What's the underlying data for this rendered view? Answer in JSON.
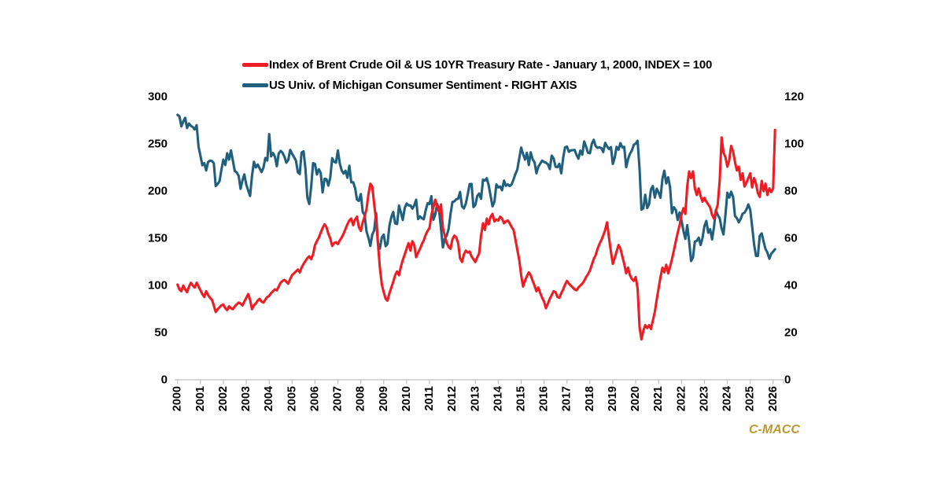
{
  "legend": [
    {
      "label": "Index of Brent Crude Oil & US 10YR Treasury Rate - January 1, 2000, INDEX = 100",
      "color": "#EE1C23"
    },
    {
      "label": "US Univ. of Michigan Consumer Sentiment - RIGHT AXIS",
      "color": "#20607E"
    }
  ],
  "watermark": "C-MACC",
  "colors": {
    "series_red": "#EE1C23",
    "series_blue": "#20607E",
    "axis_line": "#BFBFBF",
    "label_text": "#000000",
    "watermark": "#BE9730",
    "background": "#FFFFFF"
  },
  "chart_data": {
    "type": "line",
    "title": "",
    "xlabel": "",
    "ylabel_left": "",
    "ylabel_right": "",
    "grid": false,
    "legend_position": "top",
    "x_start": "2000-01",
    "x_interval": "monthly",
    "x_tick_labels": [
      "2000",
      "2001",
      "2002",
      "2003",
      "2004",
      "2005",
      "2006",
      "2007",
      "2008",
      "2009",
      "2010",
      "2011",
      "2012",
      "2013",
      "2014",
      "2015",
      "2016",
      "2017",
      "2018",
      "2019",
      "2020",
      "2021",
      "2022",
      "2023",
      "2024",
      "2025",
      "2026"
    ],
    "left_axis": {
      "min": 0,
      "max": 300,
      "step": 50,
      "ticks": [
        0,
        50,
        100,
        150,
        200,
        250,
        300
      ]
    },
    "right_axis": {
      "min": 0,
      "max": 120,
      "step": 20,
      "ticks": [
        0,
        20,
        40,
        60,
        80,
        100,
        120
      ]
    },
    "series": [
      {
        "name": "Index of Brent Crude Oil & US 10YR Treasury Rate - January 1, 2000, INDEX = 100",
        "axis": "left",
        "color": "#EE1C23",
        "z": 1,
        "values": [
          100,
          95,
          93,
          99,
          95,
          92,
          98,
          102,
          99,
          97,
          102,
          98,
          94,
          90,
          87,
          93,
          89,
          86,
          84,
          78,
          71,
          74,
          76,
          78,
          79,
          75,
          73,
          77,
          75,
          74,
          77,
          79,
          81,
          80,
          78,
          82,
          86,
          90,
          84,
          74,
          78,
          80,
          83,
          85,
          82,
          81,
          84,
          87,
          88,
          91,
          93,
          95,
          94,
          98,
          102,
          104,
          105,
          103,
          101,
          106,
          110,
          112,
          114,
          116,
          113,
          118,
          122,
          125,
          128,
          130,
          127,
          132,
          142,
          146,
          150,
          155,
          160,
          164,
          161,
          154,
          149,
          141,
          144,
          145,
          143,
          147,
          150,
          154,
          159,
          164,
          168,
          170,
          163,
          169,
          172,
          161,
          157,
          166,
          172,
          180,
          196,
          207,
          204,
          186,
          168,
          143,
          118,
          100,
          92,
          85,
          83,
          91,
          97,
          103,
          110,
          114,
          110,
          119,
          126,
          132,
          138,
          144,
          136,
          146,
          142,
          129,
          134,
          138,
          143,
          147,
          153,
          157,
          160,
          174,
          182,
          190,
          183,
          177,
          185,
          160,
          152,
          144,
          140,
          138,
          148,
          152,
          150,
          144,
          128,
          124,
          132,
          136,
          134,
          135,
          130,
          127,
          124,
          129,
          133,
          152,
          165,
          158,
          170,
          164,
          172,
          175,
          167,
          169,
          168,
          172,
          170,
          165,
          167,
          168,
          165,
          161,
          158,
          148,
          137,
          126,
          110,
          98,
          104,
          109,
          113,
          110,
          104,
          99,
          93,
          97,
          91,
          86,
          82,
          75,
          80,
          85,
          89,
          93,
          92,
          87,
          86,
          91,
          95,
          100,
          104,
          101,
          99,
          97,
          95,
          94,
          97,
          99,
          101,
          104,
          108,
          111,
          115,
          121,
          127,
          131,
          138,
          143,
          147,
          152,
          158,
          166,
          150,
          135,
          122,
          128,
          135,
          142,
          138,
          130,
          122,
          112,
          118,
          110,
          106,
          104,
          108,
          96,
          55,
          42,
          51,
          57,
          54,
          57,
          53,
          62,
          71,
          84,
          96,
          108,
          118,
          113,
          121,
          112,
          119,
          127,
          136,
          146,
          155,
          163,
          174,
          181,
          175,
          204,
          220,
          213,
          220,
          202,
          195,
          202,
          194,
          188,
          192,
          188,
          185,
          182,
          174,
          170,
          178,
          185,
          211,
          256,
          240,
          235,
          225,
          232,
          247,
          241,
          230,
          221,
          225,
          211,
          218,
          204,
          208,
          213,
          218,
          203,
          213,
          207,
          197,
          193,
          210,
          199,
          207,
          195,
          202,
          198,
          202,
          264
        ]
      },
      {
        "name": "US Univ. of Michigan Consumer Sentiment - RIGHT AXIS",
        "axis": "right",
        "color": "#20607E",
        "z": 0,
        "values": [
          112,
          111.3,
          107.1,
          109.2,
          110.7,
          106.4,
          108.3,
          107.3,
          106.8,
          105.8,
          107.6,
          98.4,
          94.7,
          90.6,
          91.5,
          88.4,
          92,
          92.6,
          92.4,
          91.5,
          81.8,
          82.7,
          83.9,
          88.8,
          93,
          90.7,
          95.7,
          93,
          96.9,
          92.4,
          88.1,
          87.6,
          86.1,
          80.6,
          84.2,
          86.7,
          82.4,
          79.9,
          77.6,
          86,
          92.1,
          89.7,
          90.9,
          89.3,
          87.7,
          89.6,
          93.7,
          92.6,
          103.8,
          94.4,
          95.8,
          94.2,
          90.2,
          95.6,
          96.7,
          95.9,
          94.2,
          91.7,
          92.8,
          97.1,
          95.5,
          94.1,
          92.6,
          87.7,
          86.9,
          96,
          96.5,
          89.1,
          76.9,
          74.2,
          81.6,
          91.5,
          91.2,
          86.7,
          88.9,
          87.4,
          79.1,
          84.9,
          84.7,
          82,
          85.4,
          93.6,
          92.1,
          91.7,
          96.9,
          91.3,
          88.4,
          87.1,
          88.3,
          85.3,
          90.4,
          83.4,
          83.4,
          80.9,
          76.1,
          75.5,
          78.4,
          70.8,
          69.5,
          62.6,
          59.8,
          56.4,
          61.2,
          63,
          70.3,
          57.6,
          55.3,
          60.1,
          61.2,
          56.3,
          57.3,
          65.1,
          68.7,
          70.8,
          66,
          65.7,
          73.5,
          70.6,
          67.4,
          72.5,
          74.4,
          73.6,
          73.6,
          72.2,
          73.6,
          76,
          67.8,
          68.9,
          68.2,
          67.7,
          71.6,
          74.5,
          74.2,
          77.5,
          67.5,
          69.8,
          74.3,
          71.5,
          63.7,
          55.8,
          59.5,
          60.8,
          63.7,
          69.9,
          75,
          75.3,
          76.2,
          76.4,
          79.3,
          73.2,
          72.3,
          74.3,
          78.3,
          82.6,
          82.7,
          72.9,
          73.8,
          77.6,
          78.6,
          76.4,
          84.5,
          84.1,
          85.1,
          82.1,
          77.5,
          73.2,
          75.1,
          82.5,
          81.2,
          81.6,
          80,
          84.1,
          81.9,
          82.5,
          81.8,
          82.5,
          84.6,
          86.9,
          88.8,
          93.6,
          98.1,
          95.4,
          93,
          95.9,
          90.7,
          96.1,
          93.1,
          91.9,
          87.2,
          90,
          91.3,
          92.6,
          92,
          91.7,
          91,
          89,
          94.7,
          93.5,
          90,
          89.8,
          91.2,
          87.2,
          93.8,
          98.2,
          98.5,
          96.3,
          96.9,
          97,
          97.1,
          95,
          93.4,
          96.8,
          95.1,
          100.7,
          98.5,
          95.9,
          95.7,
          99.7,
          101.4,
          98.8,
          98,
          98.2,
          97.9,
          96.2,
          100.1,
          98.6,
          97.5,
          98.3,
          91.2,
          93.8,
          98.4,
          97.2,
          100,
          98.2,
          98.4,
          89.8,
          93.2,
          95.5,
          96.8,
          99.3,
          99.8,
          101,
          89.1,
          71.8,
          72.3,
          78.1,
          72.5,
          74.1,
          80.4,
          81.8,
          76.9,
          80.7,
          79,
          76.8,
          84.9,
          88.3,
          82.9,
          85.5,
          81.2,
          70.3,
          72.8,
          71.7,
          67.4,
          70.6,
          67.2,
          62.8,
          59.4,
          65.2,
          58.4,
          50,
          51.5,
          58.2,
          58.6,
          59.9,
          56.8,
          59.7,
          64.9,
          67,
          62,
          63.5,
          59.2,
          64.4,
          71.6,
          69.5,
          68.1,
          63.8,
          61.3,
          69.7,
          79,
          76.9,
          79.4,
          77.2,
          69.1,
          68.2,
          66.4,
          67.9,
          70.1,
          70.5,
          71.8,
          74,
          71.7,
          64.7,
          57,
          52.2,
          52.2,
          60.7,
          61.7,
          58.2,
          55.1,
          53.6,
          51,
          53.1,
          54,
          55
        ]
      }
    ]
  }
}
